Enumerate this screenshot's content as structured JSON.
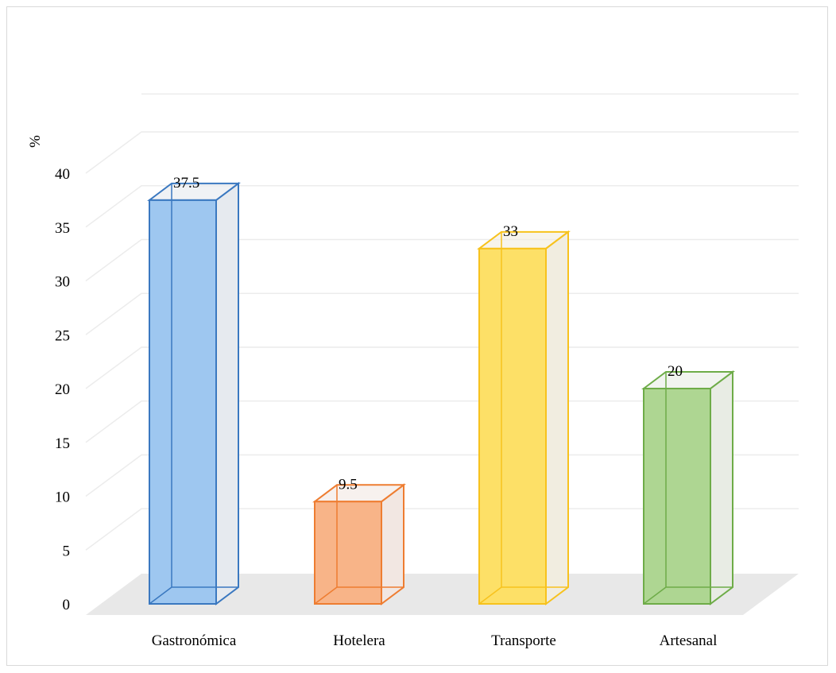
{
  "chart_data": {
    "type": "bar",
    "style": "3d-column",
    "ylabel": "%",
    "ylim": [
      0,
      40
    ],
    "ytick_step": 5,
    "yticks": [
      "0",
      "5",
      "10",
      "15",
      "20",
      "25",
      "30",
      "35",
      "40"
    ],
    "categories": [
      "Gastronómica",
      "Hotelera",
      "Transporte",
      "Artesanal"
    ],
    "values": [
      37.5,
      9.5,
      33,
      20
    ],
    "data_labels": [
      "37.5",
      "9.5",
      "33",
      "20"
    ],
    "colors": [
      {
        "fill": "#9ec7f0",
        "stroke": "#3a78c0",
        "side": "#e6eaef"
      },
      {
        "fill": "#f8b488",
        "stroke": "#ee7d31",
        "side": "#f2e7e2"
      },
      {
        "fill": "#fde067",
        "stroke": "#f7c21d",
        "side": "#f1ede0"
      },
      {
        "fill": "#aed692",
        "stroke": "#6eac48",
        "side": "#e8ece4"
      }
    ],
    "grid": true,
    "legend": "none"
  }
}
